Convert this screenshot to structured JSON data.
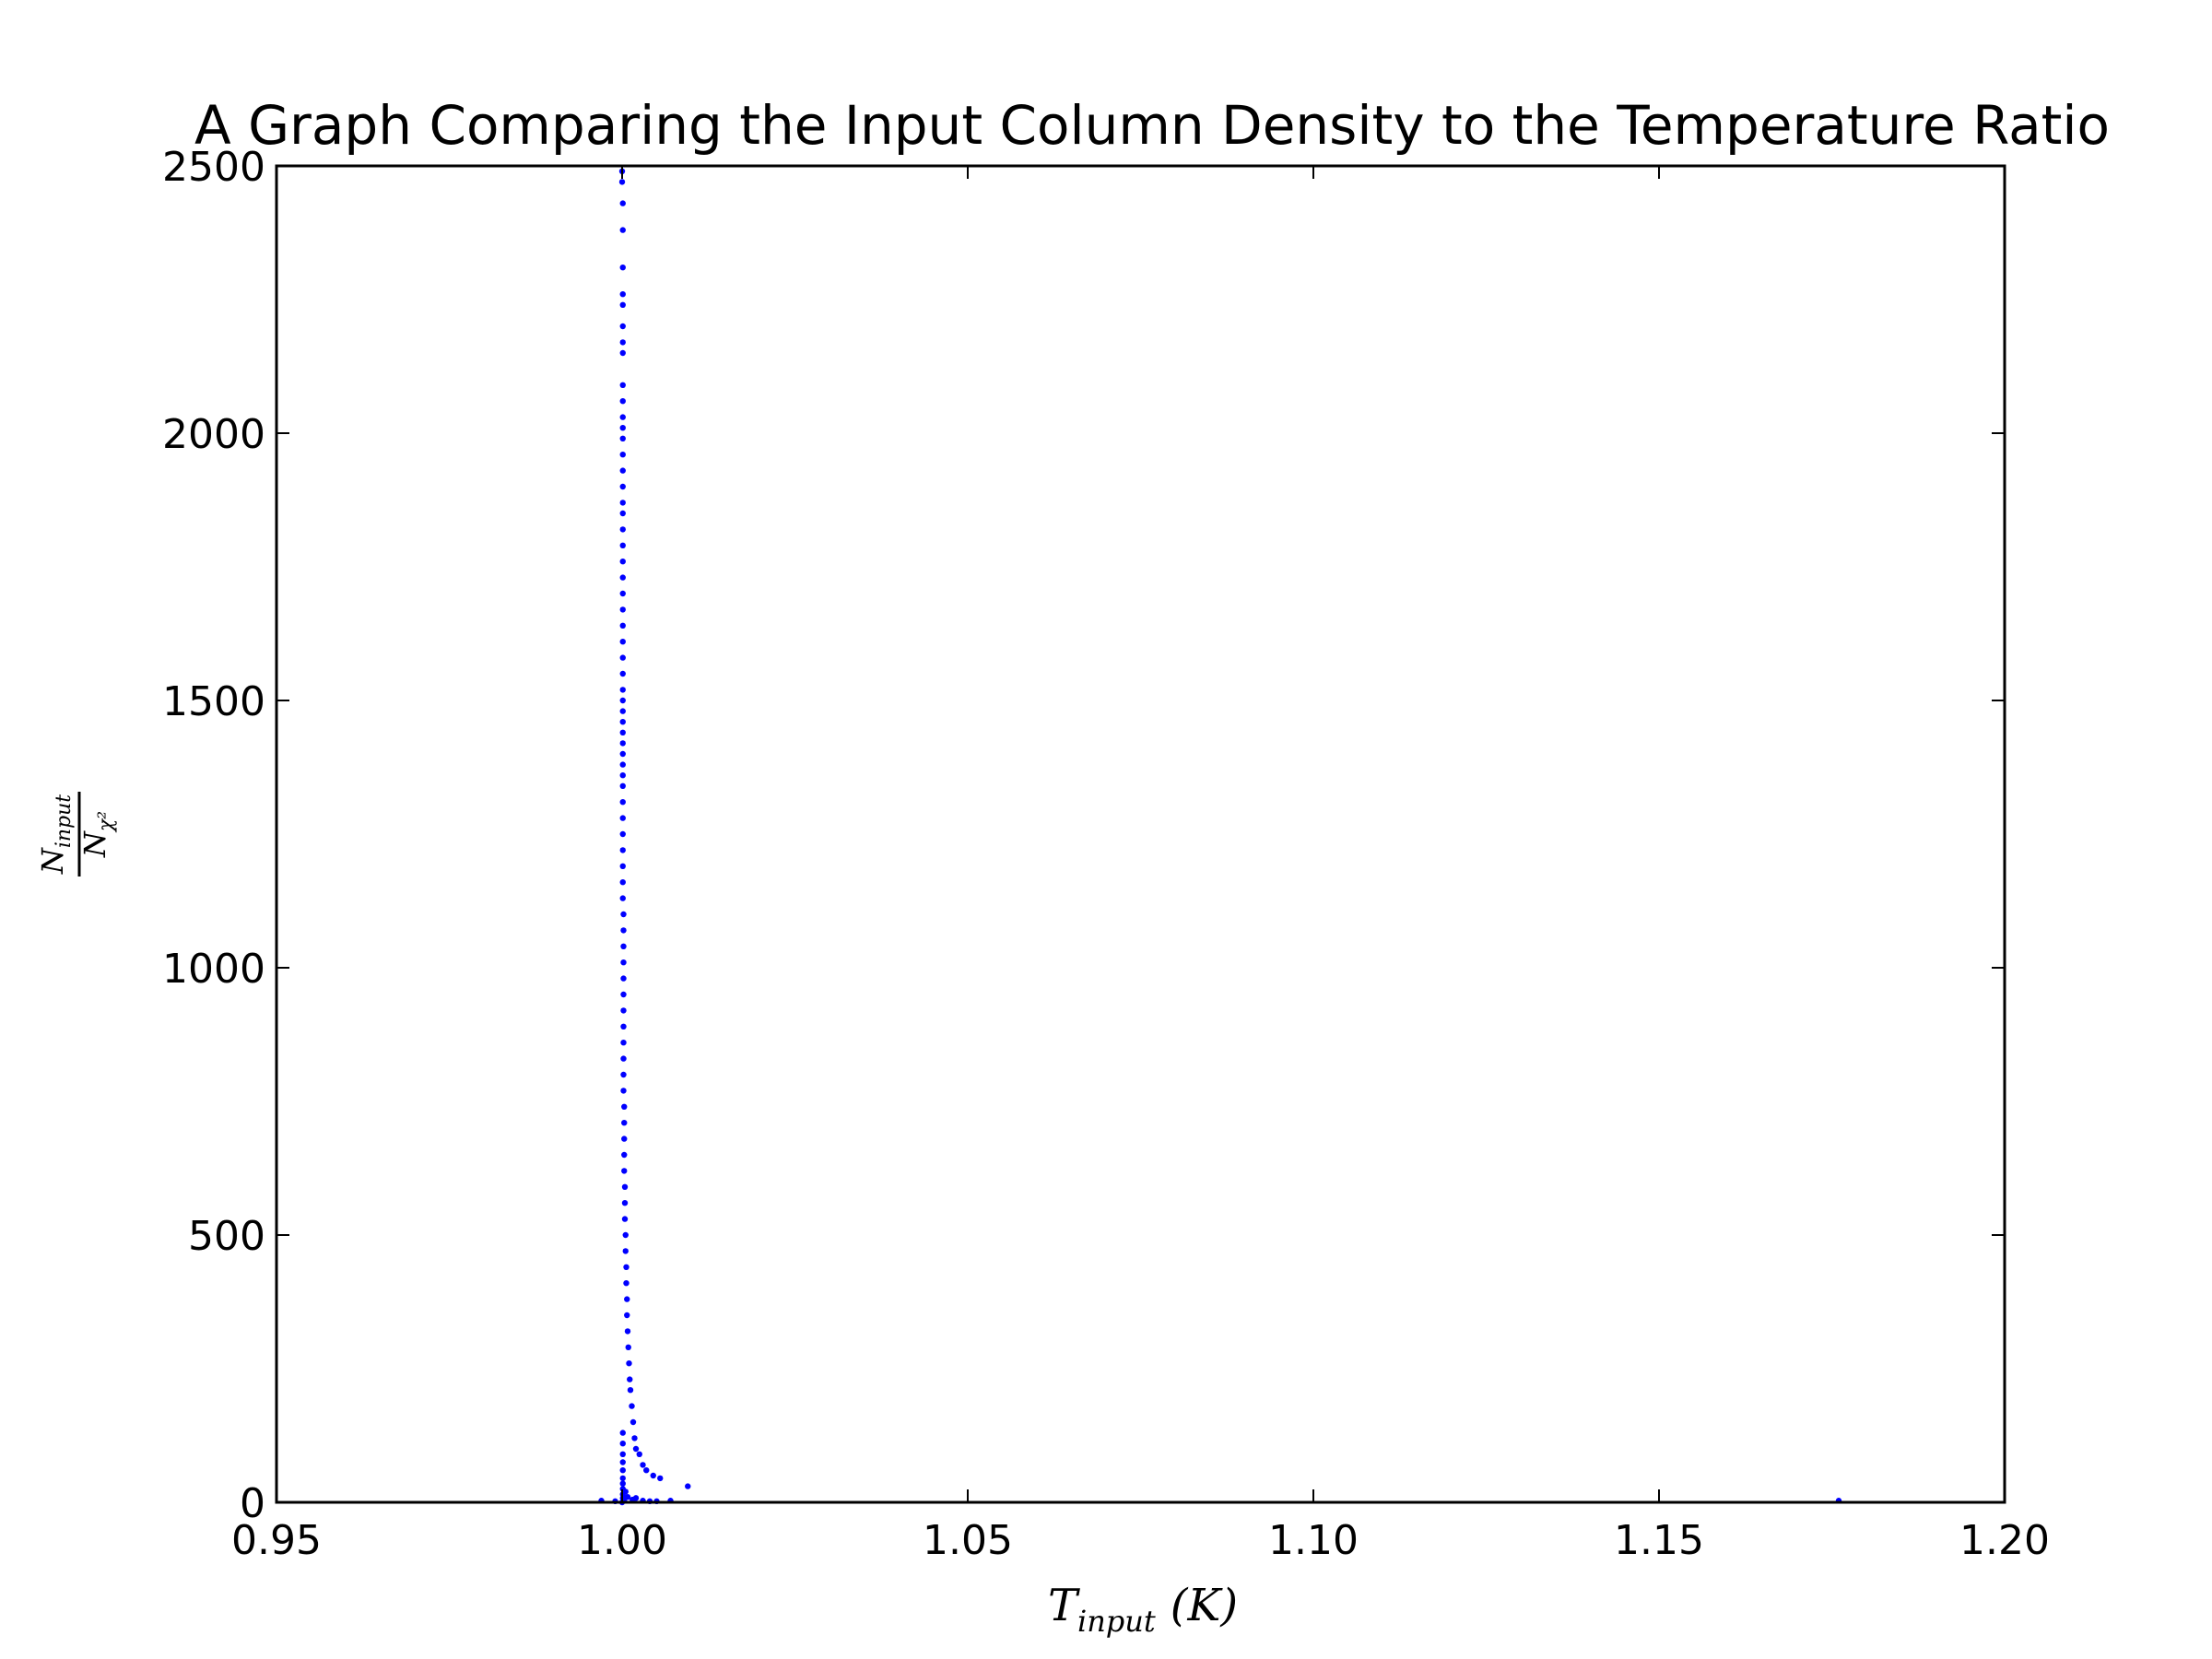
{
  "chart_data": {
    "type": "scatter",
    "title": "A Graph Comparing the Input Column Density to the Temperature Ratio",
    "xlabel": {
      "main": "T",
      "sub": "input",
      "unit": "(K)"
    },
    "ylabel": {
      "numerator": "N",
      "numerator_sub": "input",
      "denominator": "N",
      "denominator_sub": "χ²"
    },
    "xlim": [
      0.95,
      1.2
    ],
    "ylim": [
      0,
      2500
    ],
    "xticks": [
      {
        "value": 0.95,
        "label": "0.95"
      },
      {
        "value": 1.0,
        "label": "1.00"
      },
      {
        "value": 1.05,
        "label": "1.05"
      },
      {
        "value": 1.1,
        "label": "1.10"
      },
      {
        "value": 1.15,
        "label": "1.15"
      },
      {
        "value": 1.2,
        "label": "1.20"
      }
    ],
    "yticks": [
      {
        "value": 0,
        "label": "0"
      },
      {
        "value": 500,
        "label": "500"
      },
      {
        "value": 1000,
        "label": "1000"
      },
      {
        "value": 1500,
        "label": "1500"
      },
      {
        "value": 2000,
        "label": "2000"
      },
      {
        "value": 2500,
        "label": "2500"
      }
    ],
    "grid": false,
    "marker_color": "#0000ff",
    "series": [
      {
        "points": [
          [
            1.0,
            2490
          ],
          [
            1.0,
            2470
          ],
          [
            1.0001,
            2430
          ],
          [
            1.0001,
            2380
          ],
          [
            1.0001,
            2310
          ],
          [
            1.0001,
            2260
          ],
          [
            1.0001,
            2240
          ],
          [
            1.0001,
            2200
          ],
          [
            1.0001,
            2170
          ],
          [
            1.0001,
            2150
          ],
          [
            1.0001,
            2090
          ],
          [
            1.0001,
            2060
          ],
          [
            1.0001,
            2030
          ],
          [
            1.0001,
            2010
          ],
          [
            1.0001,
            1990
          ],
          [
            1.0001,
            1960
          ],
          [
            1.0001,
            1930
          ],
          [
            1.0001,
            1900
          ],
          [
            1.0001,
            1870
          ],
          [
            1.0001,
            1850
          ],
          [
            1.0001,
            1820
          ],
          [
            1.0001,
            1790
          ],
          [
            1.0001,
            1760
          ],
          [
            1.0001,
            1730
          ],
          [
            1.0001,
            1700
          ],
          [
            1.0001,
            1670
          ],
          [
            1.0001,
            1640
          ],
          [
            1.0001,
            1610
          ],
          [
            1.0001,
            1580
          ],
          [
            1.0001,
            1550
          ],
          [
            1.0001,
            1520
          ],
          [
            1.0001,
            1500
          ],
          [
            1.0001,
            1480
          ],
          [
            1.0001,
            1460
          ],
          [
            1.0001,
            1440
          ],
          [
            1.0001,
            1420
          ],
          [
            1.0001,
            1400
          ],
          [
            1.0001,
            1380
          ],
          [
            1.0001,
            1360
          ],
          [
            1.0001,
            1340
          ],
          [
            1.0001,
            1310
          ],
          [
            1.0001,
            1280
          ],
          [
            1.0001,
            1250
          ],
          [
            1.0001,
            1220
          ],
          [
            1.0001,
            1190
          ],
          [
            1.0001,
            1160
          ],
          [
            1.0001,
            1130
          ],
          [
            1.0002,
            1100
          ],
          [
            1.0002,
            1070
          ],
          [
            1.0002,
            1040
          ],
          [
            1.0002,
            1010
          ],
          [
            1.0002,
            980
          ],
          [
            1.0002,
            950
          ],
          [
            1.0002,
            920
          ],
          [
            1.0002,
            890
          ],
          [
            1.0002,
            860
          ],
          [
            1.0002,
            830
          ],
          [
            1.0002,
            800
          ],
          [
            1.0002,
            770
          ],
          [
            1.0003,
            740
          ],
          [
            1.0003,
            710
          ],
          [
            1.0003,
            680
          ],
          [
            1.0003,
            650
          ],
          [
            1.0003,
            620
          ],
          [
            1.0004,
            590
          ],
          [
            1.0004,
            560
          ],
          [
            1.0004,
            530
          ],
          [
            1.0005,
            500
          ],
          [
            1.0005,
            470
          ],
          [
            1.0006,
            440
          ],
          [
            1.0006,
            410
          ],
          [
            1.0007,
            380
          ],
          [
            1.0007,
            350
          ],
          [
            1.0008,
            320
          ],
          [
            1.0009,
            290
          ],
          [
            1.001,
            260
          ],
          [
            1.0011,
            230
          ],
          [
            1.0012,
            210
          ],
          [
            1.0014,
            180
          ],
          [
            1.0016,
            150
          ],
          [
            1.0018,
            120
          ],
          [
            1.002,
            100
          ],
          [
            1.0025,
            90
          ],
          [
            1.003,
            70
          ],
          [
            1.0035,
            60
          ],
          [
            1.0045,
            50
          ],
          [
            1.0055,
            45
          ],
          [
            1.0095,
            30
          ],
          [
            1.0001,
            130
          ],
          [
            1.0001,
            110
          ],
          [
            1.0001,
            90
          ],
          [
            1.0001,
            75
          ],
          [
            1.0001,
            60
          ],
          [
            1.0001,
            45
          ],
          [
            1.0001,
            35
          ],
          [
            1.0001,
            25
          ],
          [
            1.0001,
            15
          ],
          [
            1.0001,
            8
          ],
          [
            1.0002,
            5
          ],
          [
            1.0003,
            3
          ],
          [
            1.0005,
            20
          ],
          [
            1.0008,
            10
          ],
          [
            1.0015,
            5
          ],
          [
            1.002,
            8
          ],
          [
            1.003,
            3
          ],
          [
            1.004,
            2
          ],
          [
            1.005,
            2
          ],
          [
            1.007,
            3
          ],
          [
            0.997,
            3
          ],
          [
            0.999,
            2
          ],
          [
            1.0,
            0
          ],
          [
            1.176,
            3
          ]
        ]
      }
    ]
  }
}
